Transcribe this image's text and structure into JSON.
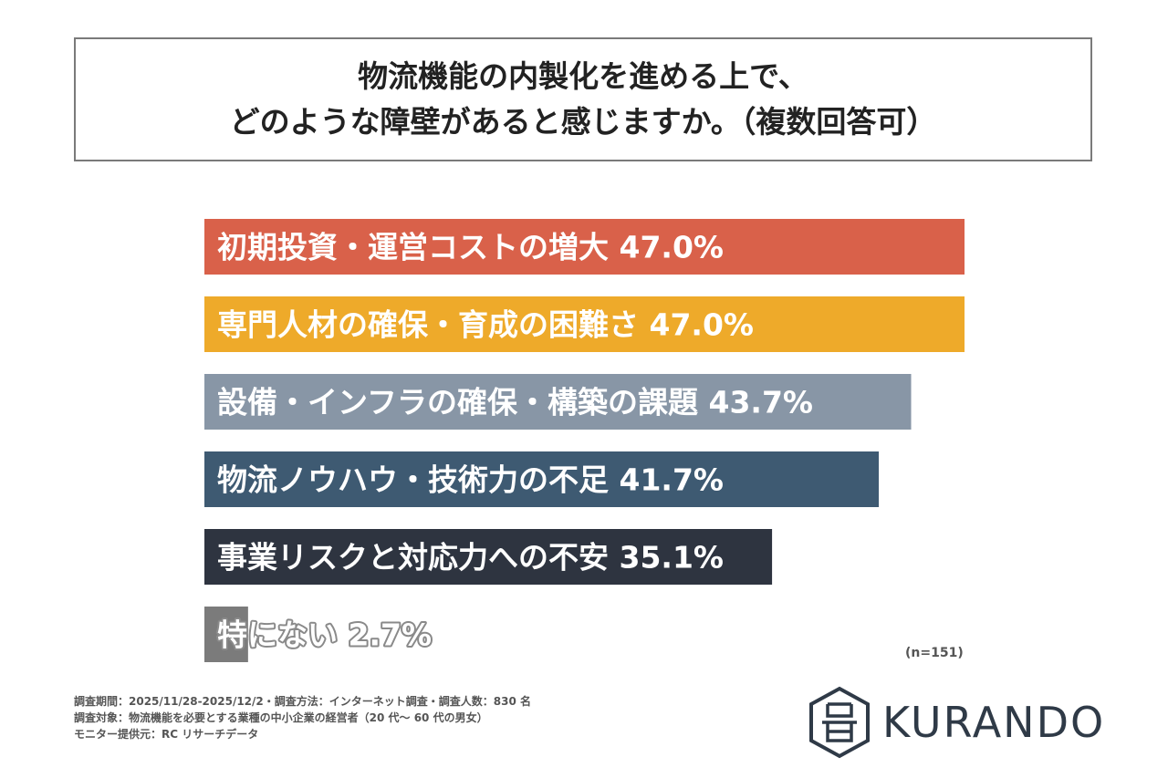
{
  "title": {
    "line1": "物流機能の内製化を進める上で、",
    "line2": "どのような障壁があると感じますか。（複数回答可）"
  },
  "chart_data": {
    "type": "bar",
    "orientation": "horizontal",
    "categories": [
      "初期投資・運営コストの増大",
      "専門人材の確保・育成の困難さ",
      "設備・インフラの確保・構築の課題",
      "物流ノウハウ・技術力の不足",
      "事業リスクと対応力への不安",
      "特にない"
    ],
    "values": [
      47.0,
      47.0,
      43.7,
      41.7,
      35.1,
      2.7
    ],
    "value_labels": [
      "47.0%",
      "47.0%",
      "43.7%",
      "41.7%",
      "35.1%",
      "2.7%"
    ],
    "colors": [
      "#d9614a",
      "#eeaa2a",
      "#8896a6",
      "#3e5a72",
      "#2e3440",
      "#7b7b7b"
    ],
    "unit": "%",
    "xlim": [
      0,
      47
    ]
  },
  "sample_note": "(n=151)",
  "notes": [
    "調査期間：2025/11/28-2025/12/2・調査方法：インターネット調査・調査人数：830 名",
    "調査対象：物流機能を必要とする業種の中小企業の経営者（20 代～ 60 代の男女）",
    "モニター提供元：RC リサーチデータ"
  ],
  "logo": {
    "text": "KURANDO",
    "icon": "kurando-logo-icon"
  }
}
